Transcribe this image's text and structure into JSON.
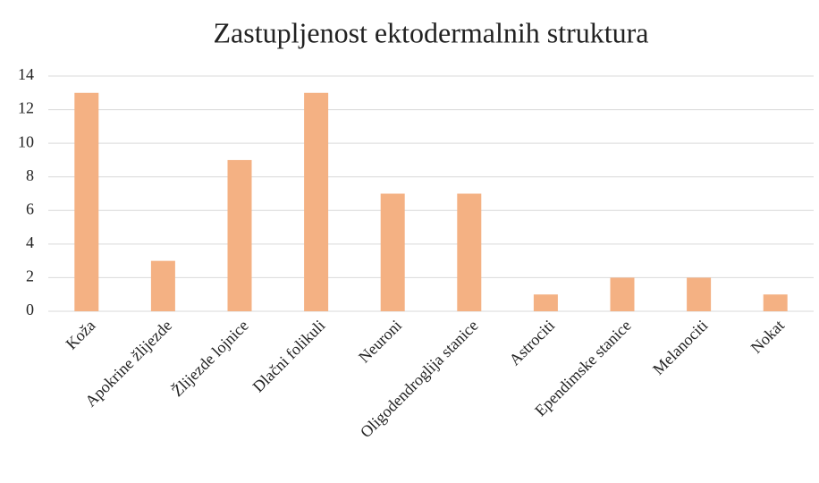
{
  "chart_data": {
    "type": "bar",
    "title": "Zastupljenost ektodermalnih struktura",
    "categories": [
      "Koža",
      "Apokrine žlijezde",
      "Žlijezde lojnice",
      "Dlačni folikuli",
      "Neuroni",
      "Oligodendroglija stanice",
      "Astrociti",
      "Ependimske stanice",
      "Melanociti",
      "Nokat"
    ],
    "values": [
      13,
      3,
      9,
      13,
      7,
      7,
      1,
      2,
      2,
      1
    ],
    "color": "#f4b183",
    "ylim": [
      0,
      14
    ],
    "yticks": [
      0,
      2,
      4,
      6,
      8,
      10,
      12,
      14
    ],
    "grid": true
  }
}
